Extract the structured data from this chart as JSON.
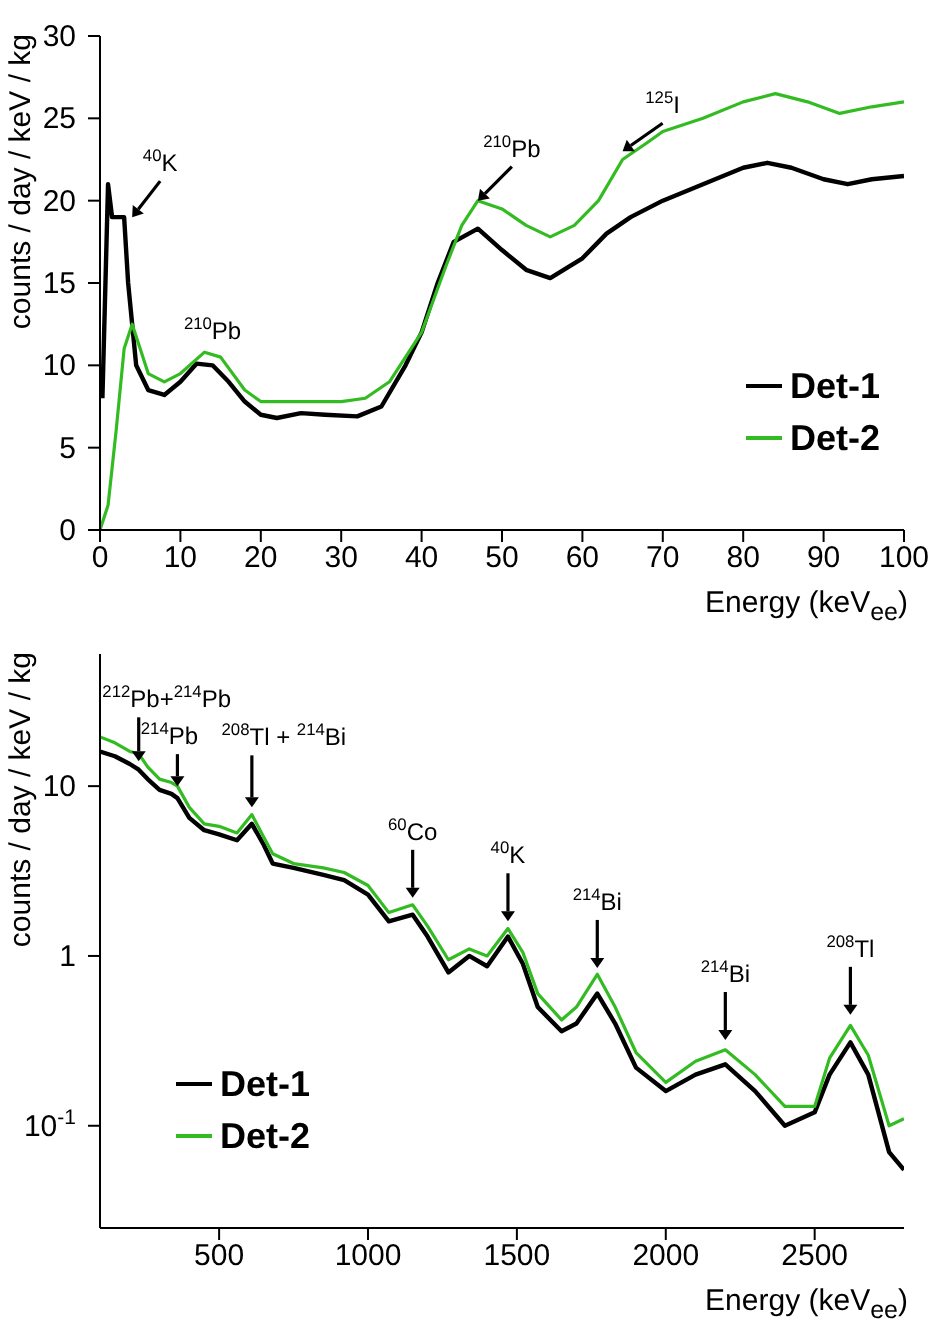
{
  "chart_data": [
    {
      "type": "line",
      "xlabel": "Energy (keV$_{ee}$)",
      "ylabel": "counts / day / keV / kg",
      "xlim": [
        0,
        100
      ],
      "ylim": [
        0,
        30
      ],
      "xticks": [
        0,
        10,
        20,
        30,
        40,
        50,
        60,
        70,
        80,
        90,
        100
      ],
      "yticks": [
        0,
        5,
        10,
        15,
        20,
        25,
        30
      ],
      "grid": false,
      "legend": "bottom right",
      "marker": "none",
      "line_style": "solid",
      "series": [
        {
          "name": "Det-1",
          "color": "#000000",
          "x": [
            0.3,
            1,
            1.5,
            3,
            3.5,
            4.5,
            6,
            8,
            10,
            12,
            14,
            16,
            18,
            20,
            22,
            25,
            28,
            32,
            35,
            38,
            40,
            42,
            44,
            47,
            50,
            53,
            56,
            60,
            63,
            66,
            70,
            75,
            80,
            83,
            86,
            90,
            93,
            96,
            100
          ],
          "values": [
            8,
            21,
            19,
            19,
            15,
            10,
            8.5,
            8.2,
            9,
            10.1,
            10,
            9,
            7.8,
            7,
            6.8,
            7.1,
            7,
            6.9,
            7.5,
            10,
            12,
            15,
            17.5,
            18.3,
            17,
            15.8,
            15.3,
            16.5,
            18,
            19,
            20,
            21,
            22,
            22.3,
            22,
            21.3,
            21,
            21.3,
            21.5
          ]
        },
        {
          "name": "Det-2",
          "color": "#33bb22",
          "x": [
            0,
            1,
            2,
            3,
            4,
            5,
            6,
            8,
            10,
            13,
            15,
            18,
            20,
            25,
            30,
            33,
            36,
            40,
            43,
            45,
            47,
            50,
            53,
            56,
            59,
            62,
            65,
            68,
            70,
            75,
            80,
            84,
            88,
            92,
            96,
            100
          ],
          "values": [
            0,
            1.5,
            6,
            11,
            12.5,
            11,
            9.5,
            9,
            9.5,
            10.8,
            10.5,
            8.5,
            7.8,
            7.8,
            7.8,
            8,
            9,
            12,
            16,
            18.5,
            20,
            19.5,
            18.5,
            17.8,
            18.5,
            20,
            22.5,
            23.5,
            24.2,
            25,
            26,
            26.5,
            26,
            25.3,
            25.7,
            26
          ]
        }
      ],
      "annotations": [
        {
          "text": "$^{40}$K",
          "x": 4,
          "y": 19
        },
        {
          "text": "$^{210}$Pb",
          "x": 14,
          "y": 11
        },
        {
          "text": "$^{210}$Pb",
          "x": 47,
          "y": 20
        },
        {
          "text": "$^{125}$I",
          "x": 65,
          "y": 23
        }
      ]
    },
    {
      "type": "line",
      "xlabel": "Energy (keV$_{ee}$)",
      "ylabel": "counts / day / keV / kg",
      "xlim": [
        100,
        2800
      ],
      "ylim": [
        0.025,
        60
      ],
      "xticks": [
        500,
        1000,
        1500,
        2000,
        2500
      ],
      "yticks": [
        {
          "value": 0.1,
          "label": "10$^{-1}$"
        },
        1,
        10
      ],
      "log": "y",
      "grid": false,
      "legend": "bottom left",
      "marker": "none",
      "line_style": "solid",
      "series": [
        {
          "name": "Det-1",
          "color": "#000000",
          "x": [
            100,
            150,
            200,
            230,
            260,
            300,
            340,
            360,
            400,
            450,
            500,
            560,
            610,
            650,
            680,
            750,
            850,
            920,
            1000,
            1070,
            1150,
            1200,
            1270,
            1340,
            1400,
            1470,
            1520,
            1570,
            1650,
            1700,
            1770,
            1830,
            1900,
            2000,
            2100,
            2200,
            2300,
            2400,
            2500,
            2550,
            2620,
            2680,
            2750,
            2800
          ],
          "values": [
            16,
            15,
            13.5,
            12.5,
            11,
            9.5,
            9,
            8.5,
            6.5,
            5.5,
            5.2,
            4.8,
            6,
            4.5,
            3.5,
            3.3,
            3,
            2.8,
            2.3,
            1.6,
            1.75,
            1.3,
            0.8,
            1,
            0.87,
            1.3,
            0.9,
            0.5,
            0.36,
            0.4,
            0.6,
            0.4,
            0.22,
            0.16,
            0.2,
            0.23,
            0.16,
            0.1,
            0.12,
            0.2,
            0.31,
            0.2,
            0.07,
            0.055
          ]
        },
        {
          "name": "Det-2",
          "color": "#33bb22",
          "x": [
            100,
            150,
            200,
            230,
            260,
            300,
            340,
            360,
            400,
            450,
            500,
            560,
            610,
            650,
            680,
            750,
            850,
            920,
            1000,
            1070,
            1150,
            1200,
            1270,
            1340,
            1400,
            1470,
            1520,
            1570,
            1650,
            1700,
            1770,
            1830,
            1900,
            2000,
            2100,
            2200,
            2300,
            2400,
            2500,
            2550,
            2620,
            2680,
            2750,
            2800
          ],
          "values": [
            19.5,
            18,
            16,
            15.5,
            13,
            11,
            10.5,
            10,
            7.5,
            6,
            5.8,
            5.3,
            6.8,
            5,
            4,
            3.5,
            3.3,
            3.1,
            2.6,
            1.8,
            2,
            1.5,
            0.95,
            1.1,
            1,
            1.45,
            1.05,
            0.6,
            0.42,
            0.5,
            0.78,
            0.5,
            0.27,
            0.18,
            0.24,
            0.28,
            0.2,
            0.13,
            0.13,
            0.25,
            0.39,
            0.26,
            0.1,
            0.11
          ]
        }
      ],
      "annotations": [
        {
          "text": "$^{212}$Pb+$^{214}$Pb",
          "x": 230,
          "y": 14
        },
        {
          "text": "$^{214}$Pb",
          "x": 360,
          "y": 10
        },
        {
          "text": "$^{208}$Tl + $^{214}$Bi",
          "x": 610,
          "y": 7.5
        },
        {
          "text": "$^{60}$Co",
          "x": 1150,
          "y": 2.2
        },
        {
          "text": "$^{40}$K",
          "x": 1470,
          "y": 1.6
        },
        {
          "text": "$^{214}$Bi",
          "x": 1770,
          "y": 0.85
        },
        {
          "text": "$^{214}$Bi",
          "x": 2200,
          "y": 0.32
        },
        {
          "text": "$^{208}$Tl",
          "x": 2620,
          "y": 0.45
        }
      ]
    }
  ]
}
